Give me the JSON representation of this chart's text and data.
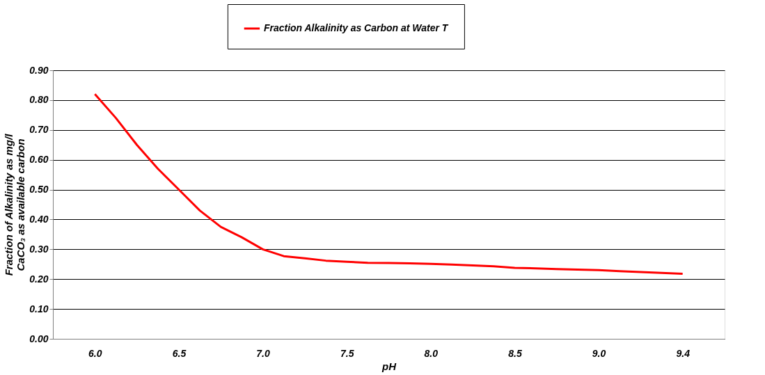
{
  "chart_data": {
    "type": "line",
    "xlabel": "pH",
    "ylabel": "Fraction of Alkalinity as mg/l\nCaCO₃ as available carbon",
    "categories": [
      "6.0",
      null,
      null,
      null,
      "6.5",
      null,
      null,
      null,
      "7.0",
      null,
      null,
      null,
      "7.5",
      null,
      null,
      null,
      "8.0",
      null,
      null,
      null,
      "8.5",
      null,
      null,
      null,
      "9.0",
      null,
      null,
      null,
      "9.4"
    ],
    "series": [
      {
        "name": "Fraction Alkalinity as Carbon at Water T",
        "color": "#ff0000",
        "values": [
          0.82,
          0.74,
          0.65,
          0.57,
          0.5,
          0.43,
          0.375,
          0.34,
          0.3,
          0.277,
          0.27,
          0.262,
          0.258,
          0.255,
          0.254,
          0.253,
          0.251,
          0.249,
          0.246,
          0.243,
          0.238,
          0.236,
          0.234,
          0.232,
          0.23,
          0.227,
          0.224,
          0.221,
          0.218
        ]
      }
    ],
    "ylim": [
      0,
      0.9
    ],
    "yticks": [
      {
        "value": 0,
        "label": "0.00"
      },
      {
        "value": 0.1,
        "label": "0.10"
      },
      {
        "value": 0.2,
        "label": "0.20"
      },
      {
        "value": 0.3,
        "label": "0.30"
      },
      {
        "value": 0.4,
        "label": "0.40"
      },
      {
        "value": 0.5,
        "label": "0.50"
      },
      {
        "value": 0.6,
        "label": "0.60"
      },
      {
        "value": 0.7,
        "label": "0.70"
      },
      {
        "value": 0.8,
        "label": "0.80"
      },
      {
        "value": 0.9,
        "label": "0.90"
      }
    ],
    "grid": "y",
    "legend": "top",
    "marker": "none",
    "line_style": "solid"
  }
}
